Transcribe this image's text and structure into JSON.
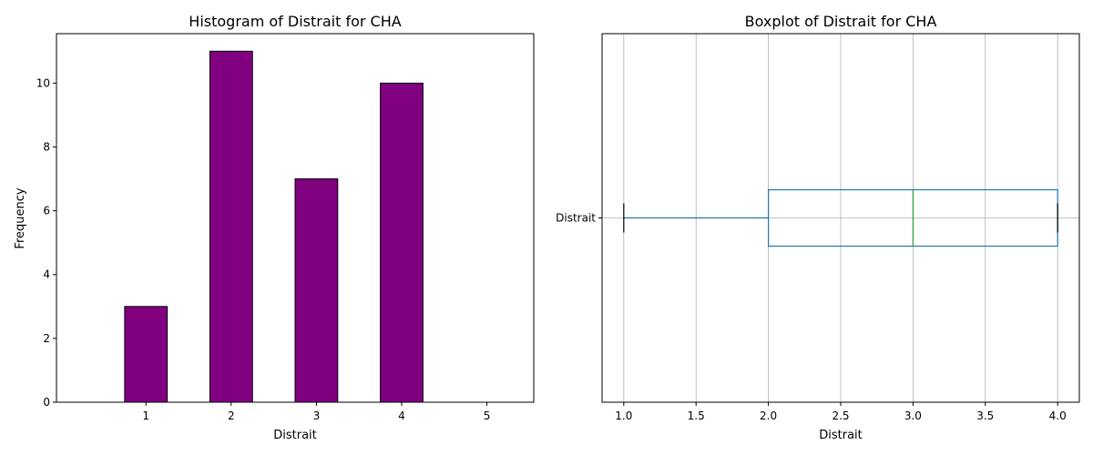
{
  "chart_data": [
    {
      "type": "bar",
      "title": "Histogram of Distrait for CHA",
      "xlabel": "Distrait",
      "ylabel": "Frequency",
      "categories": [
        "1",
        "2",
        "3",
        "4",
        "5"
      ],
      "values": [
        3,
        11,
        7,
        10,
        0
      ],
      "yticks": [
        0,
        2,
        4,
        6,
        8,
        10
      ],
      "ylim": [
        0,
        11.55
      ],
      "bar_color": "#800080",
      "edge_color": "#000000",
      "grid": false
    },
    {
      "type": "boxplot",
      "title": "Boxplot of Distrait for CHA",
      "xlabel": "Distrait",
      "category": "Distrait",
      "min": 1.0,
      "q1": 2.0,
      "median": 3.0,
      "q3": 4.0,
      "max": 4.0,
      "xticks": [
        "1.0",
        "1.5",
        "2.0",
        "2.5",
        "3.0",
        "3.5",
        "4.0"
      ],
      "xlim": [
        0.85,
        4.15
      ],
      "box_color": "#1f77b4",
      "median_color": "#2ca02c",
      "whisker_cap_color": "#000000",
      "grid": true
    }
  ]
}
